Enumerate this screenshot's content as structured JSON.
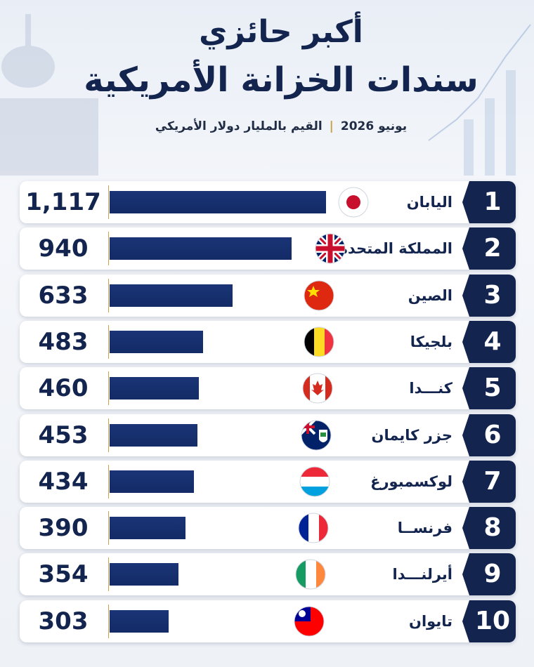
{
  "title": [
    "أكبر حائزي",
    "سندات الخزانة الأمريكية"
  ],
  "subtitle": [
    "يونيو 2026",
    "القيم بالمليار دولار الأمريكي"
  ],
  "chart_data": {
    "type": "bar",
    "ranks": [
      1,
      2,
      3,
      4,
      5,
      6,
      7,
      8,
      9,
      10
    ],
    "categories": [
      "اليابان",
      "المملكة المتحدة",
      "الصين",
      "بلجيكا",
      "كنـــدا",
      "جزر كايمان",
      "لوكسمبورغ",
      "فرنســا",
      "أيرلنـــدا",
      "تايوان"
    ],
    "values": [
      1117,
      940,
      633,
      483,
      460,
      453,
      434,
      390,
      354,
      303
    ],
    "value_labels": [
      "1,117",
      "940",
      "633",
      "483",
      "460",
      "453",
      "434",
      "390",
      "354",
      "303"
    ],
    "color": "#1a3476"
  }
}
